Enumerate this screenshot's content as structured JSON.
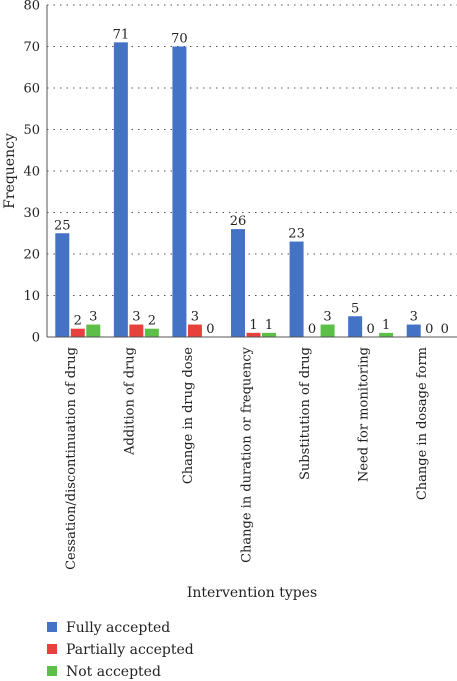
{
  "chart_data": {
    "type": "bar",
    "title": "",
    "xlabel": "Intervention types",
    "ylabel": "Frequency",
    "ylim": [
      0,
      80
    ],
    "yticks": [
      0,
      10,
      20,
      30,
      40,
      50,
      60,
      70,
      80
    ],
    "grid": "dotted-horizontal",
    "legend_position": "bottom-left",
    "categories": [
      "Cessation/discontinuation of drug",
      "Addition of drug",
      "Change in drug dose",
      "Change in duration or frequency",
      "Substitution of drug",
      "Need for monitoring",
      "Change in dosage form"
    ],
    "series": [
      {
        "name": "Fully accepted",
        "color": "#4472C4",
        "values": [
          25,
          71,
          70,
          26,
          23,
          5,
          3
        ]
      },
      {
        "name": "Partially accepted",
        "color": "#E8413C",
        "values": [
          2,
          3,
          3,
          1,
          0,
          0,
          0
        ]
      },
      {
        "name": "Not accepted",
        "color": "#5BBF48",
        "values": [
          3,
          2,
          0,
          1,
          3,
          1,
          0
        ]
      }
    ]
  }
}
